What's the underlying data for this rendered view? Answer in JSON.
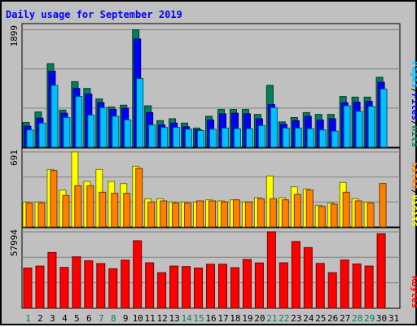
{
  "chart_data": {
    "type": "bar",
    "title": "Daily usage for September 2019",
    "colors": {
      "hits": "#00805C",
      "files": "#0000FF",
      "pages": "#00C0FF",
      "visits": "#FFFF00",
      "sites": "#FF8000",
      "kbytes": "#FF0000",
      "weekend_label": "#00805C",
      "weekday_label": "#000000",
      "title": "#0000FF"
    },
    "days": [
      "1",
      "2",
      "3",
      "4",
      "5",
      "6",
      "7",
      "8",
      "9",
      "10",
      "11",
      "12",
      "13",
      "14",
      "15",
      "16",
      "17",
      "18",
      "19",
      "20",
      "21",
      "22",
      "23",
      "24",
      "25",
      "26",
      "27",
      "28",
      "29",
      "30",
      "31"
    ],
    "weekend_days": [
      "1",
      "7",
      "8",
      "14",
      "15",
      "21",
      "22",
      "28",
      "29"
    ],
    "panels": [
      {
        "ymax_label": "1899",
        "ymax": 1899,
        "legend": [
          "Pages",
          "Files",
          "Hits"
        ],
        "series": [
          {
            "name": "Hits",
            "key": "hits",
            "values": [
              400,
              570,
              1350,
              600,
              1060,
              950,
              780,
              650,
              680,
              1899,
              670,
              430,
              460,
              390,
              310,
              500,
              610,
              610,
              610,
              530,
              1000,
              410,
              480,
              560,
              530,
              530,
              820,
              810,
              810,
              1130,
              0
            ]
          },
          {
            "name": "Files",
            "key": "files",
            "values": [
              340,
              470,
              1230,
              550,
              950,
              860,
              720,
              610,
              630,
              1750,
              560,
              360,
              390,
              330,
              280,
              440,
              540,
              550,
              540,
              460,
              690,
              370,
              430,
              500,
              440,
              460,
              720,
              730,
              740,
              1050,
              0
            ]
          },
          {
            "name": "Pages",
            "key": "pages",
            "values": [
              280,
              390,
              1000,
              480,
              820,
              520,
              640,
              500,
              440,
              1110,
              360,
              320,
              320,
              290,
              270,
              290,
              310,
              300,
              300,
              350,
              640,
              310,
              310,
              300,
              280,
              260,
              670,
              580,
              660,
              940,
              0
            ]
          }
        ]
      },
      {
        "ymax_label": "691",
        "ymax": 691,
        "legend": [
          "Sites",
          "Visits"
        ],
        "series": [
          {
            "name": "Visits",
            "key": "visits",
            "values": [
              230,
              230,
              530,
              340,
              691,
              420,
              530,
              420,
              400,
              560,
              260,
              260,
              230,
              230,
              230,
              250,
              240,
              250,
              230,
              270,
              470,
              270,
              370,
              350,
              200,
              220,
              410,
              260,
              230,
              0,
              0
            ]
          },
          {
            "name": "Sites",
            "key": "sites",
            "values": [
              220,
              220,
              520,
              290,
              380,
              380,
              320,
              310,
              310,
              540,
              230,
              240,
              220,
              220,
              240,
              240,
              230,
              250,
              230,
              260,
              260,
              250,
              300,
              340,
              190,
              210,
              320,
              240,
              220,
              400,
              0
            ]
          }
        ]
      },
      {
        "ymax_label": "57994",
        "ymax": 57994,
        "legend": [
          "KBytes"
        ],
        "series": [
          {
            "name": "KBytes",
            "key": "kbytes",
            "values": [
              30500,
              32000,
              42300,
              31000,
              39000,
              36000,
              33900,
              30000,
              36500,
              51200,
              34500,
              27000,
              32000,
              31600,
              30500,
              33400,
              33400,
              30800,
              37000,
              34400,
              57994,
              34500,
              50600,
              46000,
              34000,
              27000,
              36600,
              33600,
              32000,
              56500,
              0
            ]
          }
        ]
      }
    ]
  }
}
